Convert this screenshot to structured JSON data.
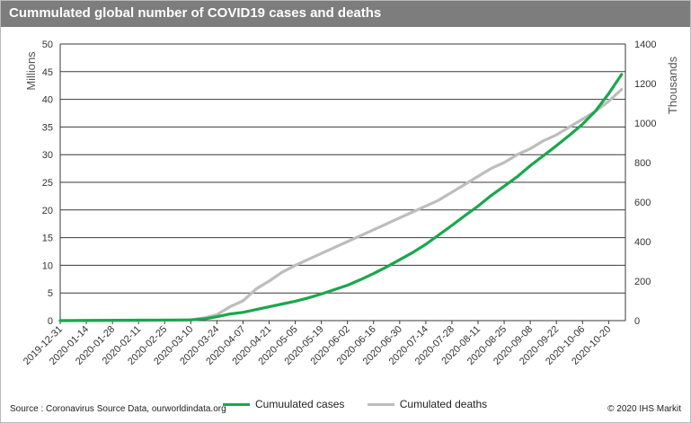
{
  "title": "Cummulated global number of COVID19 cases and deaths",
  "footer": {
    "source": "Source : Coronavirus Source Data, ourworldindata.org",
    "copyright": "© 2020 IHS Markit"
  },
  "colors": {
    "cases": "#1aa74c",
    "deaths": "#bdbdbd",
    "grid": "#3a3a3a",
    "title_bg": "#7d7d7d"
  },
  "chart_data": {
    "type": "line",
    "title": "Cummulated global number of COVID19 cases and deaths",
    "ylabel_left": "Millions",
    "ylabel_right": "Thousands",
    "ylim_left": [
      0,
      50
    ],
    "ylim_right": [
      0,
      1400
    ],
    "yticks_left": [
      0,
      5,
      10,
      15,
      20,
      25,
      30,
      35,
      40,
      45,
      50
    ],
    "yticks_right": [
      0,
      200,
      400,
      600,
      800,
      1000,
      1200,
      1400
    ],
    "xlim_days": [
      0,
      303
    ],
    "x_tick_labels": [
      "2019-12-31",
      "2020-01-14",
      "2020-01-28",
      "2020-02-11",
      "2020-02-25",
      "2020-03-10",
      "2020-03-24",
      "2020-04-07",
      "2020-04-21",
      "2020-05-05",
      "2020-05-19",
      "2020-06-02",
      "2020-06-16",
      "2020-06-30",
      "2020-07-14",
      "2020-07-28",
      "2020-08-11",
      "2020-08-25",
      "2020-09-08",
      "2020-09-22",
      "2020-10-06",
      "2020-10-20"
    ],
    "x_tick_days": [
      0,
      14,
      28,
      42,
      56,
      70,
      84,
      98,
      112,
      126,
      140,
      154,
      168,
      182,
      196,
      210,
      224,
      238,
      252,
      266,
      280,
      294
    ],
    "grid": true,
    "legend_position": "bottom",
    "series": [
      {
        "name": "Cumuulated cases",
        "axis": "left",
        "unit": "millions",
        "x_days": [
          0,
          42,
          70,
          78,
          84,
          91,
          98,
          105,
          112,
          119,
          126,
          133,
          140,
          147,
          154,
          161,
          168,
          175,
          182,
          189,
          196,
          203,
          210,
          217,
          224,
          231,
          238,
          245,
          252,
          259,
          266,
          273,
          280,
          287,
          294,
          301
        ],
        "values": [
          0,
          0.08,
          0.12,
          0.35,
          0.7,
          1.2,
          1.5,
          2.0,
          2.5,
          3.0,
          3.5,
          4.1,
          4.8,
          5.6,
          6.4,
          7.4,
          8.5,
          9.7,
          11.0,
          12.3,
          13.8,
          15.5,
          17.2,
          19.0,
          20.7,
          22.6,
          24.3,
          26.0,
          28.0,
          29.8,
          31.6,
          33.5,
          35.5,
          37.9,
          41.0,
          44.5
        ]
      },
      {
        "name": "Cumulated deaths",
        "axis": "right",
        "unit": "thousands",
        "x_days": [
          0,
          42,
          70,
          78,
          84,
          91,
          98,
          105,
          112,
          119,
          126,
          133,
          140,
          147,
          154,
          161,
          168,
          175,
          182,
          189,
          196,
          203,
          210,
          217,
          224,
          231,
          238,
          245,
          252,
          259,
          266,
          273,
          280,
          287,
          294,
          301
        ],
        "values": [
          0,
          1,
          5,
          15,
          30,
          70,
          100,
          160,
          200,
          245,
          280,
          310,
          340,
          370,
          400,
          430,
          460,
          490,
          520,
          550,
          580,
          610,
          650,
          690,
          730,
          770,
          800,
          840,
          870,
          910,
          940,
          980,
          1020,
          1060,
          1110,
          1170
        ]
      }
    ]
  }
}
